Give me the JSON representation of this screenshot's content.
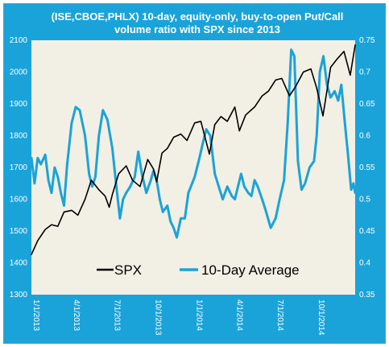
{
  "chart_data": {
    "type": "line",
    "title": "(ISE,CBOE,PHLX) 10-day, equity-only, buy-to-open Put/Call volume ratio with SPX since 2013",
    "xlabel": "",
    "ylabel_left": "",
    "ylabel_right": "",
    "x_tick_labels": [
      "1/1/2013",
      "4/1/2013",
      "7/1/2013",
      "10/1/2013",
      "1/1/2014",
      "4/1/2014",
      "7/1/2014",
      "10/1/2014"
    ],
    "x_tick_dates": [
      "2013-01-01",
      "2013-04-01",
      "2013-07-01",
      "2013-10-01",
      "2014-01-01",
      "2014-04-01",
      "2014-07-01",
      "2014-10-01"
    ],
    "x_range": [
      "2013-01-01",
      "2014-12-26"
    ],
    "y_left": {
      "min": 1300,
      "max": 2100,
      "step": 100,
      "ticks": [
        "1300",
        "1400",
        "1500",
        "1600",
        "1700",
        "1800",
        "1900",
        "2000",
        "2100"
      ]
    },
    "y_right": {
      "min": 0.35,
      "max": 0.75,
      "step": 0.05,
      "ticks": [
        "0.35",
        "0.4",
        "0.45",
        "0.5",
        "0.55",
        "0.6",
        "0.65",
        "0.7",
        "0.75"
      ]
    },
    "grid": false,
    "legend_placement": "bottom-center",
    "series": [
      {
        "name": "SPX",
        "axis": "left",
        "color": "#000000",
        "points": [
          [
            "2013-01-01",
            1426
          ],
          [
            "2013-01-15",
            1470
          ],
          [
            "2013-02-01",
            1505
          ],
          [
            "2013-02-15",
            1520
          ],
          [
            "2013-03-01",
            1515
          ],
          [
            "2013-03-15",
            1560
          ],
          [
            "2013-04-01",
            1565
          ],
          [
            "2013-04-15",
            1550
          ],
          [
            "2013-05-01",
            1600
          ],
          [
            "2013-05-15",
            1660
          ],
          [
            "2013-06-01",
            1630
          ],
          [
            "2013-06-15",
            1610
          ],
          [
            "2013-06-24",
            1575
          ],
          [
            "2013-07-01",
            1615
          ],
          [
            "2013-07-15",
            1680
          ],
          [
            "2013-08-01",
            1705
          ],
          [
            "2013-08-15",
            1660
          ],
          [
            "2013-09-01",
            1640
          ],
          [
            "2013-09-18",
            1725
          ],
          [
            "2013-10-01",
            1695
          ],
          [
            "2013-10-08",
            1655
          ],
          [
            "2013-10-20",
            1745
          ],
          [
            "2013-11-01",
            1760
          ],
          [
            "2013-11-15",
            1795
          ],
          [
            "2013-12-01",
            1805
          ],
          [
            "2013-12-15",
            1785
          ],
          [
            "2014-01-01",
            1840
          ],
          [
            "2014-01-15",
            1845
          ],
          [
            "2014-02-03",
            1742
          ],
          [
            "2014-02-15",
            1835
          ],
          [
            "2014-03-01",
            1860
          ],
          [
            "2014-03-15",
            1845
          ],
          [
            "2014-04-01",
            1890
          ],
          [
            "2014-04-11",
            1815
          ],
          [
            "2014-04-25",
            1865
          ],
          [
            "2014-05-15",
            1890
          ],
          [
            "2014-06-01",
            1925
          ],
          [
            "2014-06-15",
            1940
          ],
          [
            "2014-07-01",
            1975
          ],
          [
            "2014-07-15",
            1980
          ],
          [
            "2014-08-01",
            1925
          ],
          [
            "2014-08-15",
            1955
          ],
          [
            "2014-09-01",
            2000
          ],
          [
            "2014-09-18",
            2010
          ],
          [
            "2014-10-01",
            1950
          ],
          [
            "2014-10-15",
            1862
          ],
          [
            "2014-11-01",
            2015
          ],
          [
            "2014-11-15",
            2040
          ],
          [
            "2014-12-01",
            2065
          ],
          [
            "2014-12-15",
            1990
          ],
          [
            "2014-12-26",
            2085
          ]
        ]
      },
      {
        "name": "10-Day Average",
        "axis": "right",
        "color": "#1aa3d9",
        "points": [
          [
            "2013-01-01",
            0.565
          ],
          [
            "2013-01-08",
            0.525
          ],
          [
            "2013-01-15",
            0.565
          ],
          [
            "2013-01-22",
            0.555
          ],
          [
            "2013-02-01",
            0.57
          ],
          [
            "2013-02-08",
            0.53
          ],
          [
            "2013-02-15",
            0.51
          ],
          [
            "2013-02-22",
            0.55
          ],
          [
            "2013-03-01",
            0.535
          ],
          [
            "2013-03-08",
            0.51
          ],
          [
            "2013-03-15",
            0.49
          ],
          [
            "2013-03-22",
            0.555
          ],
          [
            "2013-04-01",
            0.62
          ],
          [
            "2013-04-10",
            0.645
          ],
          [
            "2013-04-19",
            0.64
          ],
          [
            "2013-05-01",
            0.6
          ],
          [
            "2013-05-10",
            0.54
          ],
          [
            "2013-05-17",
            0.52
          ],
          [
            "2013-05-24",
            0.535
          ],
          [
            "2013-06-01",
            0.6
          ],
          [
            "2013-06-10",
            0.64
          ],
          [
            "2013-06-20",
            0.625
          ],
          [
            "2013-07-01",
            0.58
          ],
          [
            "2013-07-10",
            0.52
          ],
          [
            "2013-07-18",
            0.47
          ],
          [
            "2013-07-25",
            0.5
          ],
          [
            "2013-08-01",
            0.51
          ],
          [
            "2013-08-10",
            0.52
          ],
          [
            "2013-08-20",
            0.535
          ],
          [
            "2013-08-28",
            0.575
          ],
          [
            "2013-09-05",
            0.54
          ],
          [
            "2013-09-15",
            0.51
          ],
          [
            "2013-09-25",
            0.53
          ],
          [
            "2013-10-01",
            0.545
          ],
          [
            "2013-10-08",
            0.53
          ],
          [
            "2013-10-15",
            0.5
          ],
          [
            "2013-10-22",
            0.48
          ],
          [
            "2013-11-01",
            0.49
          ],
          [
            "2013-11-08",
            0.465
          ],
          [
            "2013-11-15",
            0.455
          ],
          [
            "2013-11-22",
            0.44
          ],
          [
            "2013-12-01",
            0.47
          ],
          [
            "2013-12-10",
            0.47
          ],
          [
            "2013-12-18",
            0.51
          ],
          [
            "2014-01-01",
            0.535
          ],
          [
            "2014-01-10",
            0.56
          ],
          [
            "2014-01-20",
            0.59
          ],
          [
            "2014-01-27",
            0.61
          ],
          [
            "2014-02-05",
            0.6
          ],
          [
            "2014-02-15",
            0.54
          ],
          [
            "2014-02-24",
            0.52
          ],
          [
            "2014-03-05",
            0.5
          ],
          [
            "2014-03-15",
            0.52
          ],
          [
            "2014-03-25",
            0.505
          ],
          [
            "2014-04-01",
            0.5
          ],
          [
            "2014-04-08",
            0.52
          ],
          [
            "2014-04-15",
            0.54
          ],
          [
            "2014-04-22",
            0.52
          ],
          [
            "2014-05-01",
            0.51
          ],
          [
            "2014-05-08",
            0.505
          ],
          [
            "2014-05-15",
            0.53
          ],
          [
            "2014-05-22",
            0.52
          ],
          [
            "2014-06-01",
            0.5
          ],
          [
            "2014-06-10",
            0.48
          ],
          [
            "2014-06-20",
            0.455
          ],
          [
            "2014-07-01",
            0.47
          ],
          [
            "2014-07-10",
            0.5
          ],
          [
            "2014-07-20",
            0.53
          ],
          [
            "2014-07-28",
            0.62
          ],
          [
            "2014-08-05",
            0.735
          ],
          [
            "2014-08-12",
            0.725
          ],
          [
            "2014-08-20",
            0.56
          ],
          [
            "2014-08-28",
            0.515
          ],
          [
            "2014-09-05",
            0.525
          ],
          [
            "2014-09-15",
            0.55
          ],
          [
            "2014-09-25",
            0.56
          ],
          [
            "2014-10-01",
            0.6
          ],
          [
            "2014-10-08",
            0.7
          ],
          [
            "2014-10-16",
            0.725
          ],
          [
            "2014-10-24",
            0.68
          ],
          [
            "2014-11-01",
            0.66
          ],
          [
            "2014-11-10",
            0.67
          ],
          [
            "2014-11-18",
            0.655
          ],
          [
            "2014-11-25",
            0.68
          ],
          [
            "2014-12-03",
            0.62
          ],
          [
            "2014-12-10",
            0.57
          ],
          [
            "2014-12-17",
            0.515
          ],
          [
            "2014-12-22",
            0.525
          ],
          [
            "2014-12-26",
            0.51
          ]
        ]
      }
    ]
  },
  "colors": {
    "frame_background": "#1aa3d9",
    "plot_background": "#f2efe4",
    "spx_line": "#000000",
    "pc_ratio_line": "#1aa3d9",
    "text": "#ffffff"
  }
}
